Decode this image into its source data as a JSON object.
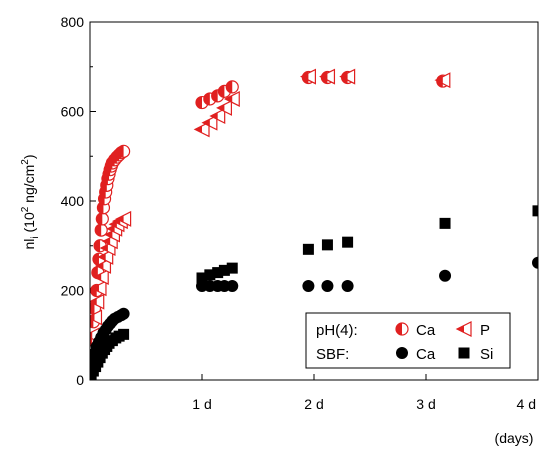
{
  "chart_data": {
    "type": "scatter",
    "xlabel": "(days)",
    "ylabel_prefix": "nl",
    "ylabel_sub": "i",
    "ylabel_mid": " (10",
    "ylabel_sup1": "2",
    "ylabel_unit": " ng/cm",
    "ylabel_sup2": "2",
    "ylabel_close": ")",
    "xlim": [
      0,
      4
    ],
    "ylim": [
      0,
      800
    ],
    "x_ticks": [
      {
        "value": 1,
        "label": "1 d"
      },
      {
        "value": 2,
        "label": "2 d"
      },
      {
        "value": 3,
        "label": "3 d"
      },
      {
        "value": 4,
        "label": "4 d"
      }
    ],
    "y_ticks": [
      {
        "value": 0,
        "label": "0"
      },
      {
        "value": 200,
        "label": "200"
      },
      {
        "value": 400,
        "label": "400"
      },
      {
        "value": 600,
        "label": "600"
      },
      {
        "value": 800,
        "label": "800"
      }
    ],
    "legend": {
      "position": "bottom-right",
      "group1_label": "pH(4):",
      "group2_label": "SBF:",
      "item_ph_ca": "Ca",
      "item_ph_p": "P",
      "item_sbf_ca": "Ca",
      "item_sbf_si": "Si"
    },
    "colors": {
      "red": "#e02020",
      "black": "#000000"
    },
    "series": [
      {
        "key": "ph_ca",
        "marker": "half-circle",
        "color": "#e02020",
        "points": [
          [
            0.02,
            90
          ],
          [
            0.03,
            130
          ],
          [
            0.04,
            160
          ],
          [
            0.06,
            200
          ],
          [
            0.07,
            240
          ],
          [
            0.08,
            270
          ],
          [
            0.09,
            300
          ],
          [
            0.1,
            335
          ],
          [
            0.11,
            360
          ],
          [
            0.12,
            385
          ],
          [
            0.13,
            405
          ],
          [
            0.14,
            420
          ],
          [
            0.15,
            435
          ],
          [
            0.16,
            450
          ],
          [
            0.17,
            460
          ],
          [
            0.18,
            470
          ],
          [
            0.19,
            478
          ],
          [
            0.2,
            485
          ],
          [
            0.22,
            492
          ],
          [
            0.24,
            498
          ],
          [
            0.26,
            503
          ],
          [
            0.28,
            508
          ],
          [
            0.3,
            511
          ],
          [
            1.0,
            620
          ],
          [
            1.07,
            628
          ],
          [
            1.14,
            635
          ],
          [
            1.2,
            645
          ],
          [
            1.27,
            655
          ],
          [
            1.95,
            676
          ],
          [
            2.12,
            676
          ],
          [
            2.3,
            676
          ],
          [
            3.15,
            668
          ]
        ]
      },
      {
        "key": "ph_p",
        "marker": "half-triangle",
        "color": "#e02020",
        "points": [
          [
            0.02,
            100
          ],
          [
            0.04,
            140
          ],
          [
            0.06,
            175
          ],
          [
            0.08,
            205
          ],
          [
            0.1,
            230
          ],
          [
            0.12,
            255
          ],
          [
            0.14,
            275
          ],
          [
            0.16,
            295
          ],
          [
            0.18,
            310
          ],
          [
            0.2,
            325
          ],
          [
            0.22,
            338
          ],
          [
            0.24,
            348
          ],
          [
            0.27,
            355
          ],
          [
            0.3,
            360
          ],
          [
            1.0,
            560
          ],
          [
            1.07,
            575
          ],
          [
            1.14,
            590
          ],
          [
            1.2,
            608
          ],
          [
            1.27,
            628
          ],
          [
            1.95,
            678
          ],
          [
            2.12,
            678
          ],
          [
            2.3,
            678
          ],
          [
            3.15,
            670
          ]
        ]
      },
      {
        "key": "sbf_ca",
        "marker": "circle",
        "color": "#000000",
        "points": [
          [
            0.01,
            20
          ],
          [
            0.02,
            35
          ],
          [
            0.03,
            50
          ],
          [
            0.05,
            62
          ],
          [
            0.06,
            75
          ],
          [
            0.08,
            85
          ],
          [
            0.1,
            95
          ],
          [
            0.12,
            105
          ],
          [
            0.14,
            112
          ],
          [
            0.16,
            120
          ],
          [
            0.18,
            126
          ],
          [
            0.2,
            132
          ],
          [
            0.22,
            137
          ],
          [
            0.25,
            141
          ],
          [
            0.28,
            145
          ],
          [
            0.3,
            148
          ],
          [
            1.0,
            210
          ],
          [
            1.07,
            210
          ],
          [
            1.14,
            210
          ],
          [
            1.2,
            210
          ],
          [
            1.27,
            210
          ],
          [
            1.95,
            210
          ],
          [
            2.12,
            210
          ],
          [
            2.3,
            210
          ],
          [
            3.17,
            233
          ],
          [
            4.0,
            262
          ]
        ]
      },
      {
        "key": "sbf_si",
        "marker": "square",
        "color": "#000000",
        "points": [
          [
            0.01,
            10
          ],
          [
            0.03,
            20
          ],
          [
            0.05,
            30
          ],
          [
            0.07,
            40
          ],
          [
            0.09,
            50
          ],
          [
            0.11,
            60
          ],
          [
            0.13,
            68
          ],
          [
            0.15,
            75
          ],
          [
            0.17,
            82
          ],
          [
            0.2,
            88
          ],
          [
            0.23,
            94
          ],
          [
            0.26,
            98
          ],
          [
            0.3,
            102
          ],
          [
            1.0,
            228
          ],
          [
            1.07,
            235
          ],
          [
            1.14,
            240
          ],
          [
            1.2,
            245
          ],
          [
            1.27,
            250
          ],
          [
            1.95,
            292
          ],
          [
            2.12,
            302
          ],
          [
            2.3,
            308
          ],
          [
            3.17,
            350
          ],
          [
            4.0,
            378
          ]
        ]
      }
    ]
  }
}
